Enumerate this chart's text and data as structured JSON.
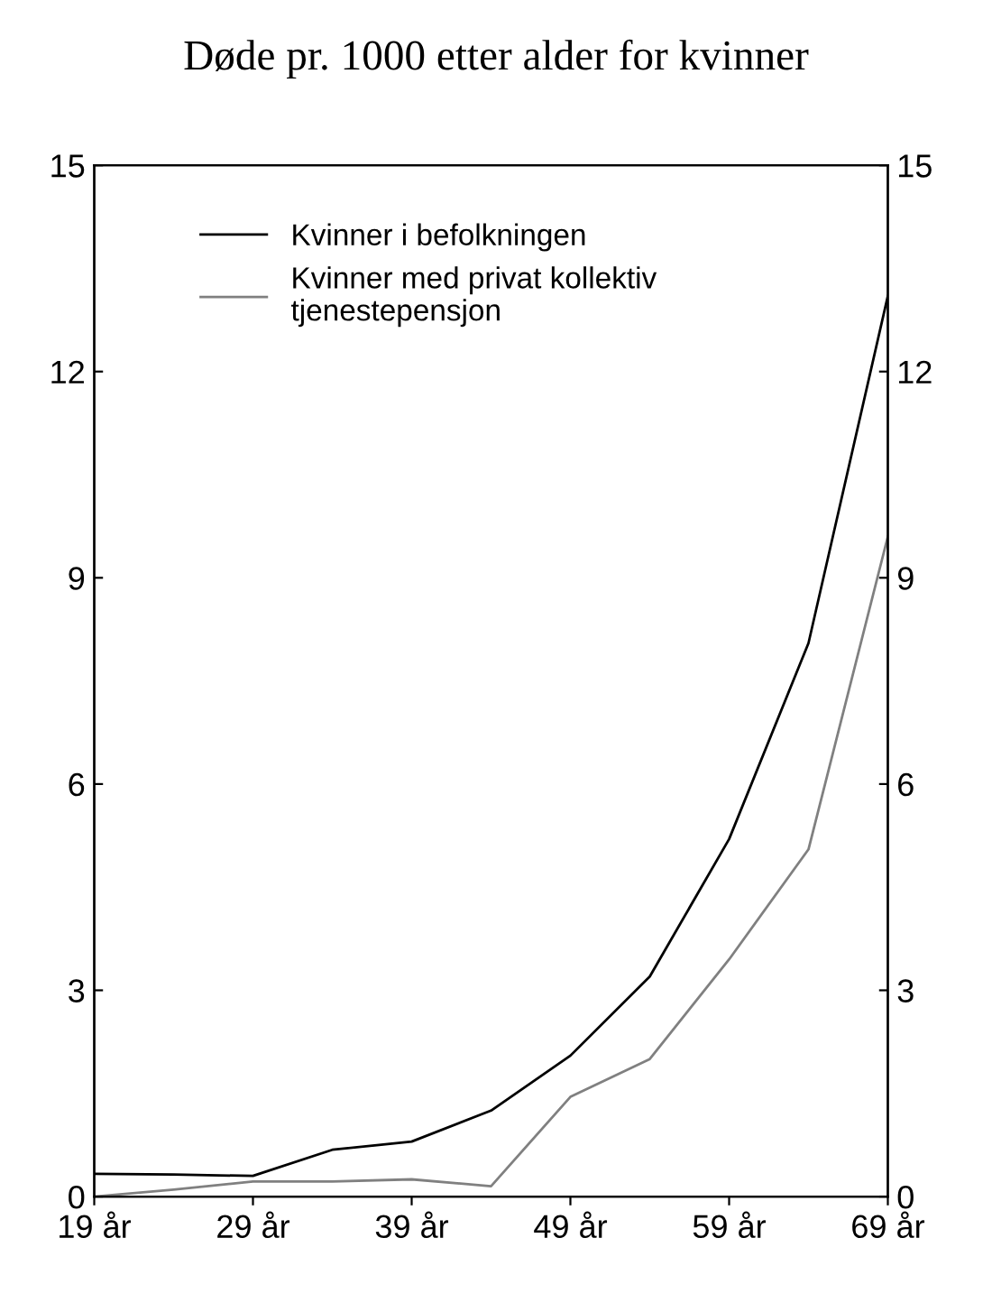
{
  "chart_data": {
    "type": "line",
    "title": "Døde pr. 1000 etter alder for kvinner",
    "x": [
      19,
      24,
      29,
      34,
      39,
      44,
      49,
      54,
      59,
      64,
      69
    ],
    "series": [
      {
        "name": "Kvinner i befolkningen",
        "color": "#000000",
        "values": [
          0.33,
          0.32,
          0.3,
          0.68,
          0.8,
          1.25,
          2.05,
          3.2,
          5.2,
          8.05,
          13.1
        ]
      },
      {
        "name": "Kvinner med privat kollektiv\ntjenestepensjon",
        "color": "#808080",
        "values": [
          0.0,
          0.1,
          0.22,
          0.22,
          0.25,
          0.15,
          1.45,
          2.0,
          3.45,
          5.05,
          9.6
        ]
      }
    ],
    "xlim": [
      19,
      69
    ],
    "xticks": [
      {
        "value": 19,
        "label": "19 år"
      },
      {
        "value": 29,
        "label": "29 år"
      },
      {
        "value": 39,
        "label": "39 år"
      },
      {
        "value": 49,
        "label": "49 år"
      },
      {
        "value": 59,
        "label": "59 år"
      },
      {
        "value": 69,
        "label": "69 år"
      }
    ],
    "ylim": [
      0,
      15
    ],
    "yticks": [
      0,
      3,
      6,
      9,
      12,
      15
    ],
    "y2lim": [
      0,
      15
    ],
    "y2ticks": [
      0,
      3,
      6,
      9,
      12,
      15
    ],
    "grid": false,
    "legend": "top left",
    "marker": "none",
    "line_style": "solid"
  }
}
